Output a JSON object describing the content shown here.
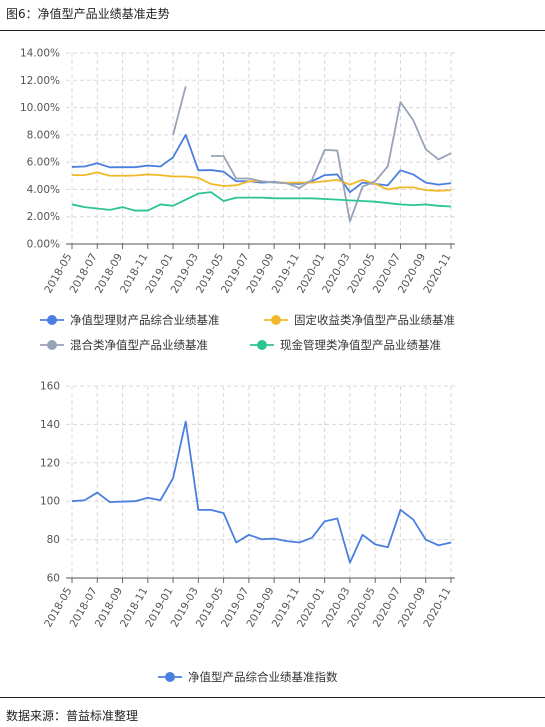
{
  "figure": {
    "title": "图6：净值型产品业绩基准走势",
    "source": "数据来源：普益标准整理"
  },
  "chart_data": [
    {
      "type": "line",
      "x": [
        "2018-05",
        "2018-06",
        "2018-07",
        "2018-08",
        "2018-09",
        "2018-10",
        "2018-11",
        "2018-12",
        "2019-01",
        "2019-02",
        "2019-03",
        "2019-04",
        "2019-05",
        "2019-06",
        "2019-07",
        "2019-08",
        "2019-09",
        "2019-10",
        "2019-11",
        "2019-12",
        "2020-01",
        "2020-02",
        "2020-03",
        "2020-04",
        "2020-05",
        "2020-06",
        "2020-07",
        "2020-08",
        "2020-09",
        "2020-10",
        "2020-11"
      ],
      "x_tick_labels": [
        "2018-05",
        "2018-07",
        "2018-09",
        "2018-11",
        "2019-01",
        "2019-03",
        "2019-05",
        "2019-07",
        "2019-09",
        "2019-11",
        "2020-01",
        "2020-03",
        "2020-05",
        "2020-07",
        "2020-09",
        "2020-11"
      ],
      "y_tick_labels": [
        "0.00%",
        "2.00%",
        "4.00%",
        "6.00%",
        "8.00%",
        "10.00%",
        "12.00%",
        "14.00%"
      ],
      "ylim": [
        0,
        14
      ],
      "grid": true,
      "legend_position": "bottom",
      "series": [
        {
          "name": "净值型理财产品综合业绩基准",
          "color": "#4a7fe0",
          "values": [
            5.65,
            5.68,
            5.92,
            5.62,
            5.63,
            5.63,
            5.75,
            5.68,
            6.35,
            8.0,
            5.4,
            5.42,
            5.3,
            4.6,
            4.6,
            4.5,
            4.55,
            4.45,
            4.4,
            4.6,
            5.05,
            5.1,
            3.8,
            4.5,
            4.4,
            4.3,
            5.4,
            5.1,
            4.5,
            4.35,
            4.45
          ]
        },
        {
          "name": "固定收益类净值型产品业绩基准",
          "color": "#f0b92a",
          "values": [
            5.05,
            5.05,
            5.25,
            5.0,
            5.0,
            5.02,
            5.1,
            5.05,
            4.95,
            4.95,
            4.85,
            4.4,
            4.25,
            4.3,
            4.6,
            4.6,
            4.5,
            4.5,
            4.5,
            4.5,
            4.6,
            4.7,
            4.35,
            4.7,
            4.4,
            4.0,
            4.15,
            4.15,
            3.95,
            3.9,
            3.95
          ]
        },
        {
          "name": "混合类净值型产品业绩基准",
          "color": "#98a3b8",
          "values": [
            null,
            null,
            null,
            null,
            null,
            null,
            null,
            null,
            8.0,
            11.55,
            null,
            6.45,
            6.45,
            4.8,
            4.8,
            4.6,
            4.5,
            4.45,
            4.1,
            4.7,
            6.9,
            6.85,
            1.65,
            4.2,
            4.6,
            5.7,
            10.4,
            9.1,
            6.95,
            6.2,
            6.65
          ]
        },
        {
          "name": "现金管理类净值型产品业绩基准",
          "color": "#2cc592",
          "values": [
            2.9,
            2.7,
            2.6,
            2.5,
            2.7,
            2.45,
            2.45,
            2.9,
            2.8,
            3.25,
            3.7,
            3.8,
            3.15,
            3.4,
            3.4,
            3.4,
            3.35,
            3.35,
            3.35,
            3.35,
            3.3,
            3.25,
            3.2,
            3.15,
            3.1,
            3.0,
            2.9,
            2.85,
            2.9,
            2.8,
            2.75
          ]
        }
      ]
    },
    {
      "type": "line",
      "x": [
        "2018-05",
        "2018-06",
        "2018-07",
        "2018-08",
        "2018-09",
        "2018-10",
        "2018-11",
        "2018-12",
        "2019-01",
        "2019-02",
        "2019-03",
        "2019-04",
        "2019-05",
        "2019-06",
        "2019-07",
        "2019-08",
        "2019-09",
        "2019-10",
        "2019-11",
        "2019-12",
        "2020-01",
        "2020-02",
        "2020-03",
        "2020-04",
        "2020-05",
        "2020-06",
        "2020-07",
        "2020-08",
        "2020-09",
        "2020-10",
        "2020-11"
      ],
      "x_tick_labels": [
        "2018-05",
        "2018-07",
        "2018-09",
        "2018-11",
        "2019-01",
        "2019-03",
        "2019-05",
        "2019-07",
        "2019-09",
        "2019-11",
        "2020-01",
        "2020-03",
        "2020-05",
        "2020-07",
        "2020-09",
        "2020-11"
      ],
      "y_tick_labels": [
        "60",
        "80",
        "100",
        "120",
        "140",
        "160"
      ],
      "ylim": [
        60,
        160
      ],
      "grid": true,
      "legend_position": "bottom",
      "series": [
        {
          "name": "净值型产品综合业绩基准指数",
          "color": "#4a7fe0",
          "values": [
            100,
            100.5,
            104.5,
            99.5,
            99.8,
            100,
            101.8,
            100.5,
            112,
            141.5,
            95.5,
            95.5,
            93.8,
            78.5,
            82.5,
            80.2,
            80.5,
            79.2,
            78.5,
            81,
            89.5,
            91,
            68,
            82.5,
            77.5,
            76,
            95.5,
            90.5,
            80,
            77,
            78.5
          ]
        }
      ]
    }
  ]
}
